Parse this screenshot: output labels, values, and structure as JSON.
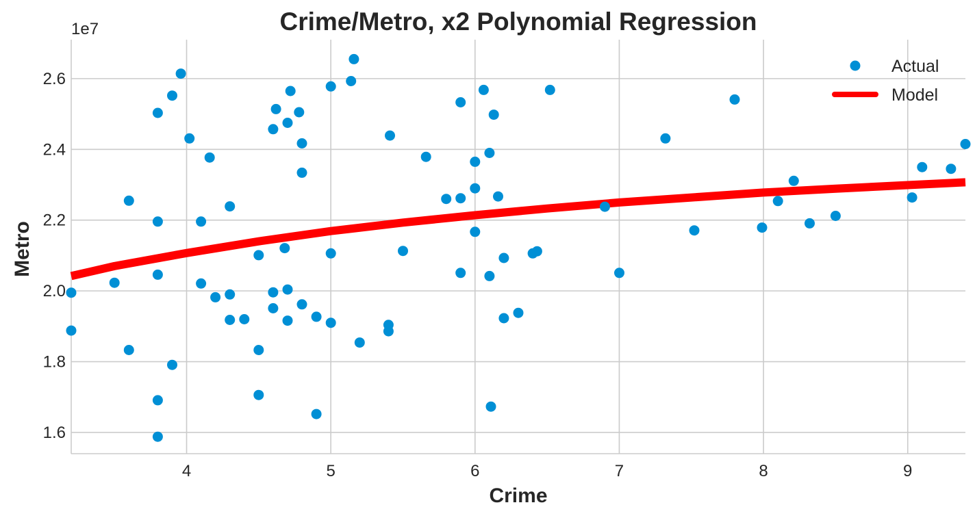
{
  "chart_data": {
    "type": "scatter",
    "title": "Crime/Metro, x2 Polynomial Regression",
    "xlabel": "Crime",
    "ylabel": "Metro",
    "y_offset_label": "1e7",
    "y_scale_factor": 10000000,
    "xlim": [
      3.2,
      9.4
    ],
    "ylim": [
      15400000,
      27100000
    ],
    "x_ticks": [
      4,
      5,
      6,
      7,
      8,
      9
    ],
    "x_tick_labels": [
      "4",
      "5",
      "6",
      "7",
      "8",
      "9"
    ],
    "y_ticks": [
      16000000,
      18000000,
      20000000,
      22000000,
      24000000,
      26000000
    ],
    "y_tick_labels": [
      "1.6",
      "1.8",
      "2.0",
      "2.2",
      "2.4",
      "2.6"
    ],
    "grid": true,
    "legend_position": "top-right",
    "colors": {
      "actual": "#008fd5",
      "model": "#ff0000",
      "grid": "#cbcbcb",
      "text": "#262626"
    },
    "series": [
      {
        "name": "Actual",
        "kind": "scatter",
        "x": [
          3.2,
          3.2,
          3.5,
          3.6,
          3.6,
          3.8,
          3.8,
          3.8,
          3.8,
          3.8,
          3.9,
          3.9,
          3.96,
          4.02,
          4.1,
          4.1,
          4.16,
          4.2,
          4.3,
          4.3,
          4.3,
          4.4,
          4.5,
          4.5,
          4.5,
          4.6,
          4.6,
          4.6,
          4.62,
          4.68,
          4.7,
          4.7,
          4.7,
          4.72,
          4.78,
          4.8,
          4.8,
          4.8,
          4.9,
          4.9,
          5.0,
          5.0,
          5.0,
          5.14,
          5.16,
          5.2,
          5.4,
          5.4,
          5.41,
          5.5,
          5.66,
          5.8,
          5.9,
          5.9,
          5.9,
          6.0,
          6.0,
          6.0,
          6.06,
          6.1,
          6.1,
          6.11,
          6.13,
          6.16,
          6.2,
          6.2,
          6.3,
          6.4,
          6.43,
          6.52,
          6.9,
          7.0,
          7.32,
          7.52,
          7.8,
          7.99,
          8.1,
          8.21,
          8.32,
          8.5,
          9.03,
          9.1,
          9.3,
          9.4
        ],
        "y": [
          19950000,
          18880000,
          20230000,
          22550000,
          18330000,
          25030000,
          21960000,
          20460000,
          16910000,
          15880000,
          25520000,
          17910000,
          26140000,
          24310000,
          21960000,
          20210000,
          23770000,
          19820000,
          22390000,
          19900000,
          19180000,
          19200000,
          21010000,
          18330000,
          17060000,
          24570000,
          19960000,
          19510000,
          25140000,
          21210000,
          24750000,
          20040000,
          19160000,
          25650000,
          25050000,
          24170000,
          23340000,
          19620000,
          19270000,
          16520000,
          25780000,
          21060000,
          19100000,
          25930000,
          26550000,
          18540000,
          19040000,
          18860000,
          24390000,
          21130000,
          23790000,
          22600000,
          25330000,
          22620000,
          20510000,
          23650000,
          22900000,
          21670000,
          25680000,
          23900000,
          20420000,
          16730000,
          24980000,
          22670000,
          20930000,
          19230000,
          19380000,
          21060000,
          21120000,
          25680000,
          22380000,
          20510000,
          24310000,
          21710000,
          25410000,
          21790000,
          22540000,
          23110000,
          21910000,
          22120000,
          22640000,
          23500000,
          23450000,
          24150000
        ]
      },
      {
        "name": "Model",
        "kind": "line",
        "x": [
          3.2,
          3.5,
          4.0,
          4.5,
          5.0,
          5.5,
          6.0,
          6.5,
          7.0,
          7.5,
          8.0,
          8.5,
          9.0,
          9.4
        ],
        "y": [
          20420000,
          20700000,
          21070000,
          21400000,
          21690000,
          21930000,
          22140000,
          22330000,
          22500000,
          22640000,
          22780000,
          22890000,
          22990000,
          23070000
        ]
      }
    ]
  }
}
